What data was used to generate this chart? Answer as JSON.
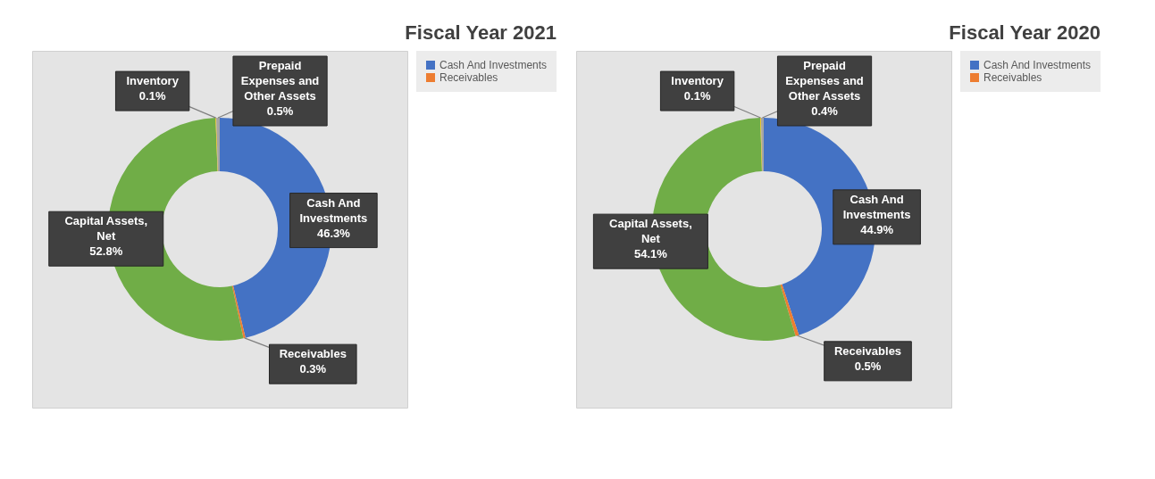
{
  "chart_data": [
    {
      "type": "donut",
      "title": "Fiscal Year 2021",
      "categories": [
        "Cash And Investments",
        "Receivables",
        "Capital Assets, Net",
        "Inventory",
        "Prepaid Expenses and Other Assets"
      ],
      "values": [
        46.3,
        0.3,
        52.8,
        0.1,
        0.5
      ],
      "colors": [
        "#4472c4",
        "#ed7d31",
        "#70ad47",
        "#ffc000",
        "#a5a5a5"
      ],
      "value_labels": [
        "46.3%",
        "0.3%",
        "52.8%",
        "0.1%",
        "0.5%"
      ],
      "legend": "right"
    },
    {
      "type": "donut",
      "title": "Fiscal Year 2020",
      "categories": [
        "Cash And Investments",
        "Receivables",
        "Capital Assets, Net",
        "Inventory",
        "Prepaid Expenses and Other Assets"
      ],
      "values": [
        44.9,
        0.5,
        54.1,
        0.1,
        0.4
      ],
      "colors": [
        "#4472c4",
        "#ed7d31",
        "#70ad47",
        "#ffc000",
        "#a5a5a5"
      ],
      "value_labels": [
        "44.9%",
        "0.5%",
        "54.1%",
        "0.1%",
        "0.4%"
      ],
      "legend": "right"
    }
  ]
}
